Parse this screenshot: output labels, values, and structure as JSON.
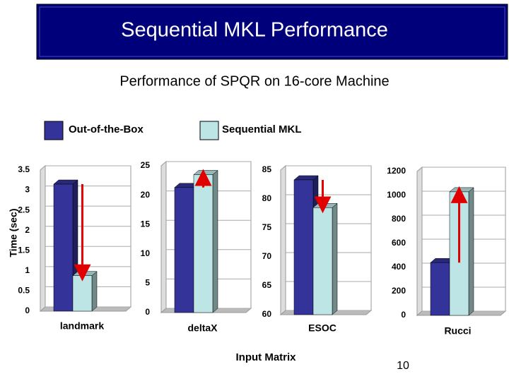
{
  "title": "Sequential MKL Performance",
  "subtitle": "Performance of SPQR on 16-core Machine",
  "xlabel": "Input Matrix",
  "ylabel": "Time (sec)",
  "page_number": "10",
  "chart_data": [
    {
      "type": "bar",
      "categories": [
        "landmark"
      ],
      "series": [
        {
          "name": "Out-of-the-Box",
          "color": "#333399",
          "values": [
            3.15
          ]
        },
        {
          "name": "Sequential MKL",
          "color": "#bde5e5",
          "values": [
            0.88
          ]
        }
      ],
      "ylim": [
        0,
        3.5
      ],
      "yticks": [
        0,
        0.5,
        1,
        1.5,
        2,
        2.5,
        3,
        3.5
      ],
      "grid": true
    },
    {
      "type": "bar",
      "categories": [
        "deltaX"
      ],
      "series": [
        {
          "name": "Out-of-the-Box",
          "color": "#333399",
          "values": [
            21.3
          ]
        },
        {
          "name": "Sequential MKL",
          "color": "#bde5e5",
          "values": [
            23.5
          ]
        }
      ],
      "ylim": [
        0,
        25
      ],
      "yticks": [
        0,
        5,
        10,
        15,
        20,
        25
      ],
      "grid": true
    },
    {
      "type": "bar",
      "categories": [
        "ESOC"
      ],
      "series": [
        {
          "name": "Out-of-the-Box",
          "color": "#333399",
          "values": [
            83.3
          ]
        },
        {
          "name": "Sequential MKL",
          "color": "#bde5e5",
          "values": [
            78.5
          ]
        }
      ],
      "ylim": [
        60,
        85
      ],
      "yticks": [
        60,
        65,
        70,
        75,
        80,
        85
      ],
      "grid": true
    },
    {
      "type": "bar",
      "categories": [
        "Rucci"
      ],
      "series": [
        {
          "name": "Out-of-the-Box",
          "color": "#333399",
          "values": [
            440
          ]
        },
        {
          "name": "Sequential MKL",
          "color": "#bde5e5",
          "values": [
            1030
          ]
        }
      ],
      "ylim": [
        0,
        1200
      ],
      "yticks": [
        0,
        200,
        400,
        600,
        800,
        1000,
        1200
      ],
      "grid": true
    }
  ]
}
